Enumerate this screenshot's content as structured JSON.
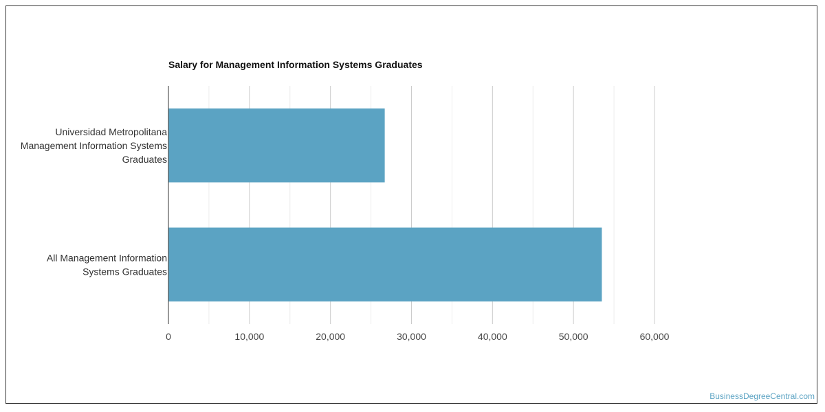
{
  "chart_data": {
    "type": "bar",
    "orientation": "horizontal",
    "title": "Salary for Management Information Systems Graduates",
    "xlabel": "",
    "ylabel": "",
    "categories": [
      [
        "Universidad Metropolitana",
        "Management Information Systems",
        "Graduates"
      ],
      [
        "All Management Information",
        "Systems Graduates"
      ]
    ],
    "values": [
      26700,
      53500
    ],
    "xlim": [
      0,
      60000
    ],
    "ticks": [
      0,
      10000,
      20000,
      30000,
      40000,
      50000,
      60000
    ],
    "tick_labels": [
      "0",
      "10,000",
      "20,000",
      "30,000",
      "40,000",
      "50,000",
      "60,000"
    ],
    "grid": true,
    "bar_color": "#5ba3c3"
  },
  "watermark": "BusinessDegreeCentral.com"
}
